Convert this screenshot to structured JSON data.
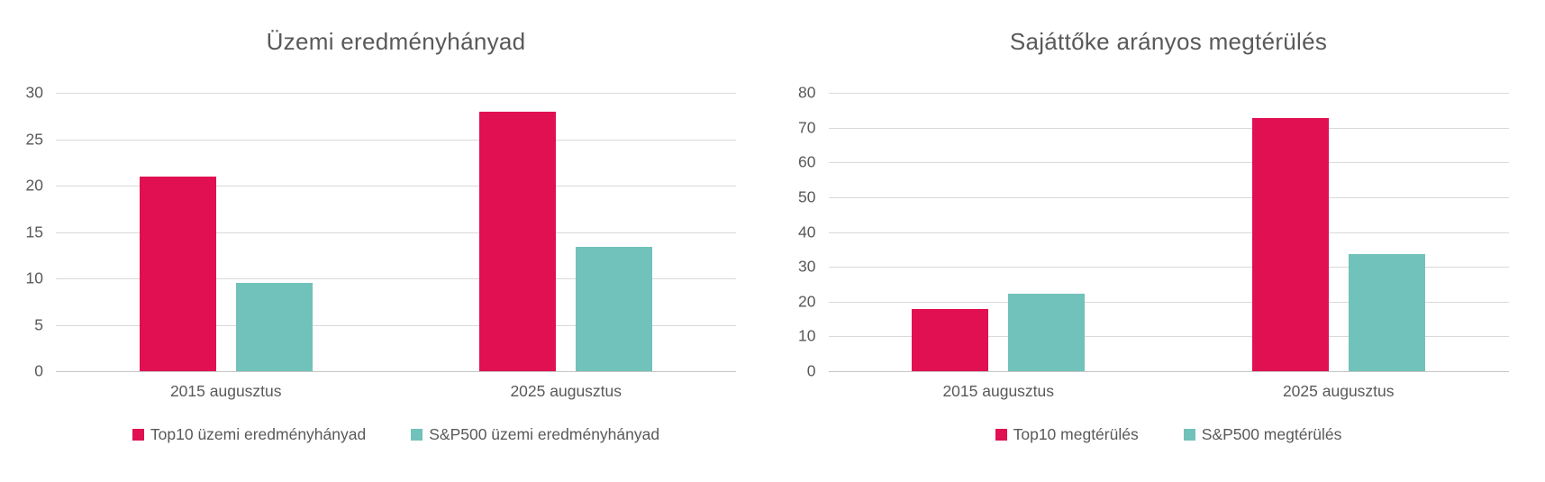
{
  "figure": {
    "background": "#ffffff",
    "text_color": "#595959",
    "gridline_color": "#D9D9D9"
  },
  "chart_data": [
    {
      "type": "bar",
      "title": "Üzemi eredményhányad",
      "categories": [
        "2015 augusztus",
        "2025 augusztus"
      ],
      "series": [
        {
          "name": "Top10 üzemi eredményhányad",
          "color": "#E01052",
          "values": [
            21,
            28
          ]
        },
        {
          "name": "S&P500 üzemi eredményhányad",
          "color": "#71C2BA",
          "values": [
            9.5,
            13.4
          ]
        }
      ],
      "xlabel": "",
      "ylabel": "",
      "ylim": [
        0,
        30
      ],
      "ytick_step": 5,
      "yticks": [
        0,
        5,
        10,
        15,
        20,
        25,
        30
      ],
      "grid": true,
      "legend_position": "bottom"
    },
    {
      "type": "bar",
      "title": "Sajáttőke arányos megtérülés",
      "categories": [
        "2015 augusztus",
        "2025 augusztus"
      ],
      "series": [
        {
          "name": "Top10 megtérülés",
          "color": "#E01052",
          "values": [
            17.8,
            72.7
          ]
        },
        {
          "name": "S&P500 megtérülés",
          "color": "#71C2BA",
          "values": [
            22.3,
            33.7
          ]
        }
      ],
      "xlabel": "",
      "ylabel": "",
      "ylim": [
        0,
        80
      ],
      "ytick_step": 10,
      "yticks": [
        0,
        10,
        20,
        30,
        40,
        50,
        60,
        70,
        80
      ],
      "grid": true,
      "legend_position": "bottom"
    }
  ]
}
